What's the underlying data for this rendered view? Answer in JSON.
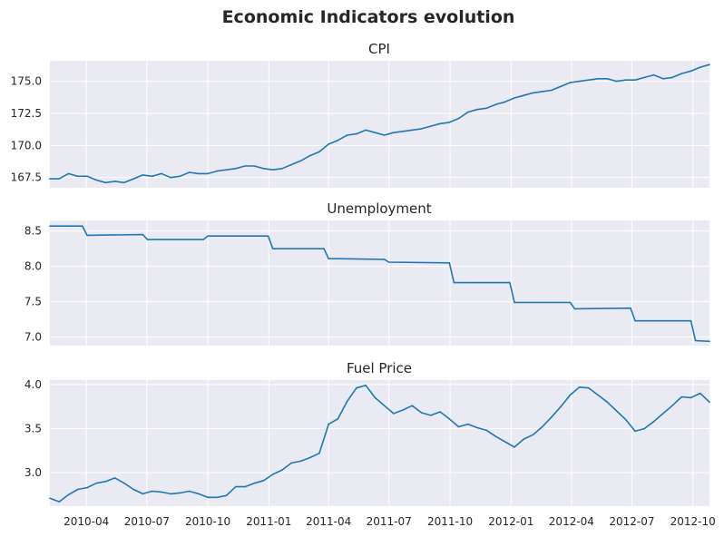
{
  "figure": {
    "title": "Economic Indicators evolution"
  },
  "chart_data": [
    {
      "type": "line",
      "title": "CPI",
      "xlabel": "",
      "ylabel": "",
      "x_range": [
        "2010-02-05",
        "2012-10-26"
      ],
      "ylim": [
        166.7,
        176.6
      ],
      "yticks": [
        "167.5",
        "170.0",
        "172.5",
        "175.0"
      ],
      "ytick_values": [
        167.5,
        170.0,
        172.5,
        175.0
      ],
      "grid": true,
      "color": "#1f77b4",
      "points": [
        [
          "2010-02-05",
          167.4
        ],
        [
          "2010-02-19",
          167.4
        ],
        [
          "2010-03-05",
          167.8
        ],
        [
          "2010-03-19",
          167.6
        ],
        [
          "2010-04-02",
          167.6
        ],
        [
          "2010-04-16",
          167.3
        ],
        [
          "2010-04-30",
          167.1
        ],
        [
          "2010-05-14",
          167.2
        ],
        [
          "2010-05-28",
          167.1
        ],
        [
          "2010-06-11",
          167.4
        ],
        [
          "2010-06-25",
          167.7
        ],
        [
          "2010-07-09",
          167.6
        ],
        [
          "2010-07-23",
          167.8
        ],
        [
          "2010-08-06",
          167.5
        ],
        [
          "2010-08-20",
          167.6
        ],
        [
          "2010-09-03",
          167.9
        ],
        [
          "2010-09-17",
          167.8
        ],
        [
          "2010-10-01",
          167.8
        ],
        [
          "2010-10-15",
          168.0
        ],
        [
          "2010-10-29",
          168.1
        ],
        [
          "2010-11-12",
          168.2
        ],
        [
          "2010-11-26",
          168.4
        ],
        [
          "2010-12-10",
          168.4
        ],
        [
          "2010-12-24",
          168.2
        ],
        [
          "2011-01-07",
          168.1
        ],
        [
          "2011-01-21",
          168.2
        ],
        [
          "2011-02-04",
          168.5
        ],
        [
          "2011-02-18",
          168.8
        ],
        [
          "2011-03-04",
          169.2
        ],
        [
          "2011-03-18",
          169.5
        ],
        [
          "2011-04-01",
          170.1
        ],
        [
          "2011-04-15",
          170.4
        ],
        [
          "2011-04-29",
          170.8
        ],
        [
          "2011-05-13",
          170.9
        ],
        [
          "2011-05-27",
          171.2
        ],
        [
          "2011-06-10",
          171.0
        ],
        [
          "2011-06-24",
          170.8
        ],
        [
          "2011-07-08",
          171.0
        ],
        [
          "2011-07-22",
          171.1
        ],
        [
          "2011-08-05",
          171.2
        ],
        [
          "2011-08-19",
          171.3
        ],
        [
          "2011-09-02",
          171.5
        ],
        [
          "2011-09-16",
          171.7
        ],
        [
          "2011-09-30",
          171.8
        ],
        [
          "2011-10-14",
          172.1
        ],
        [
          "2011-10-28",
          172.6
        ],
        [
          "2011-11-11",
          172.8
        ],
        [
          "2011-11-25",
          172.9
        ],
        [
          "2011-12-09",
          173.2
        ],
        [
          "2011-12-23",
          173.4
        ],
        [
          "2012-01-06",
          173.7
        ],
        [
          "2012-01-20",
          173.9
        ],
        [
          "2012-02-03",
          174.1
        ],
        [
          "2012-02-17",
          174.2
        ],
        [
          "2012-03-02",
          174.3
        ],
        [
          "2012-03-16",
          174.6
        ],
        [
          "2012-03-30",
          174.9
        ],
        [
          "2012-04-13",
          175.0
        ],
        [
          "2012-04-27",
          175.1
        ],
        [
          "2012-05-11",
          175.2
        ],
        [
          "2012-05-25",
          175.2
        ],
        [
          "2012-06-08",
          175.0
        ],
        [
          "2012-06-22",
          175.1
        ],
        [
          "2012-07-06",
          175.1
        ],
        [
          "2012-07-20",
          175.3
        ],
        [
          "2012-08-03",
          175.5
        ],
        [
          "2012-08-17",
          175.2
        ],
        [
          "2012-08-31",
          175.3
        ],
        [
          "2012-09-14",
          175.6
        ],
        [
          "2012-09-28",
          175.8
        ],
        [
          "2012-10-12",
          176.1
        ],
        [
          "2012-10-26",
          176.3
        ]
      ]
    },
    {
      "type": "line",
      "title": "Unemployment",
      "xlabel": "",
      "ylabel": "",
      "x_range": [
        "2010-02-05",
        "2012-10-26"
      ],
      "ylim": [
        6.88,
        8.65
      ],
      "yticks": [
        "7.0",
        "7.5",
        "8.0",
        "8.5"
      ],
      "ytick_values": [
        7.0,
        7.5,
        8.0,
        8.5
      ],
      "grid": true,
      "color": "#1f77b4",
      "points": [
        [
          "2010-02-05",
          8.57
        ],
        [
          "2010-03-05",
          8.57
        ],
        [
          "2010-03-26",
          8.57
        ],
        [
          "2010-04-02",
          8.44
        ],
        [
          "2010-06-25",
          8.45
        ],
        [
          "2010-07-02",
          8.38
        ],
        [
          "2010-09-24",
          8.38
        ],
        [
          "2010-10-01",
          8.43
        ],
        [
          "2010-12-31",
          8.43
        ],
        [
          "2011-01-07",
          8.25
        ],
        [
          "2011-03-25",
          8.25
        ],
        [
          "2011-04-01",
          8.11
        ],
        [
          "2011-06-24",
          8.1
        ],
        [
          "2011-07-01",
          8.06
        ],
        [
          "2011-09-30",
          8.05
        ],
        [
          "2011-10-07",
          7.77
        ],
        [
          "2011-12-30",
          7.77
        ],
        [
          "2012-01-06",
          7.49
        ],
        [
          "2012-03-30",
          7.49
        ],
        [
          "2012-04-06",
          7.4
        ],
        [
          "2012-06-29",
          7.41
        ],
        [
          "2012-07-06",
          7.23
        ],
        [
          "2012-09-28",
          7.23
        ],
        [
          "2012-10-05",
          6.95
        ],
        [
          "2012-10-26",
          6.94
        ]
      ]
    },
    {
      "type": "line",
      "title": "Fuel Price",
      "xlabel": "",
      "ylabel": "",
      "x_range": [
        "2010-02-05",
        "2012-10-26"
      ],
      "ylim": [
        2.62,
        4.05
      ],
      "yticks": [
        "3.0",
        "3.5",
        "4.0"
      ],
      "ytick_values": [
        3.0,
        3.5,
        4.0
      ],
      "grid": true,
      "color": "#1f77b4",
      "points": [
        [
          "2010-02-05",
          2.71
        ],
        [
          "2010-02-19",
          2.67
        ],
        [
          "2010-03-05",
          2.75
        ],
        [
          "2010-03-19",
          2.81
        ],
        [
          "2010-04-02",
          2.83
        ],
        [
          "2010-04-16",
          2.88
        ],
        [
          "2010-04-30",
          2.9
        ],
        [
          "2010-05-14",
          2.94
        ],
        [
          "2010-05-28",
          2.88
        ],
        [
          "2010-06-11",
          2.81
        ],
        [
          "2010-06-25",
          2.76
        ],
        [
          "2010-07-09",
          2.79
        ],
        [
          "2010-07-23",
          2.78
        ],
        [
          "2010-08-06",
          2.76
        ],
        [
          "2010-08-20",
          2.77
        ],
        [
          "2010-09-03",
          2.79
        ],
        [
          "2010-09-17",
          2.76
        ],
        [
          "2010-10-01",
          2.72
        ],
        [
          "2010-10-15",
          2.72
        ],
        [
          "2010-10-29",
          2.74
        ],
        [
          "2010-11-12",
          2.84
        ],
        [
          "2010-11-26",
          2.84
        ],
        [
          "2010-12-10",
          2.88
        ],
        [
          "2010-12-24",
          2.91
        ],
        [
          "2011-01-07",
          2.98
        ],
        [
          "2011-01-21",
          3.03
        ],
        [
          "2011-02-04",
          3.11
        ],
        [
          "2011-02-18",
          3.13
        ],
        [
          "2011-03-04",
          3.17
        ],
        [
          "2011-03-18",
          3.22
        ],
        [
          "2011-04-01",
          3.55
        ],
        [
          "2011-04-15",
          3.61
        ],
        [
          "2011-04-29",
          3.81
        ],
        [
          "2011-05-13",
          3.96
        ],
        [
          "2011-05-27",
          3.99
        ],
        [
          "2011-06-10",
          3.85
        ],
        [
          "2011-06-24",
          3.76
        ],
        [
          "2011-07-08",
          3.67
        ],
        [
          "2011-07-22",
          3.71
        ],
        [
          "2011-08-05",
          3.76
        ],
        [
          "2011-08-19",
          3.68
        ],
        [
          "2011-09-02",
          3.65
        ],
        [
          "2011-09-16",
          3.69
        ],
        [
          "2011-09-30",
          3.61
        ],
        [
          "2011-10-14",
          3.52
        ],
        [
          "2011-10-28",
          3.55
        ],
        [
          "2011-11-11",
          3.51
        ],
        [
          "2011-11-25",
          3.48
        ],
        [
          "2011-12-09",
          3.41
        ],
        [
          "2011-12-23",
          3.35
        ],
        [
          "2012-01-06",
          3.29
        ],
        [
          "2012-01-20",
          3.38
        ],
        [
          "2012-02-03",
          3.43
        ],
        [
          "2012-02-17",
          3.52
        ],
        [
          "2012-03-02",
          3.63
        ],
        [
          "2012-03-16",
          3.75
        ],
        [
          "2012-03-30",
          3.88
        ],
        [
          "2012-04-13",
          3.97
        ],
        [
          "2012-04-27",
          3.96
        ],
        [
          "2012-05-11",
          3.88
        ],
        [
          "2012-05-25",
          3.8
        ],
        [
          "2012-06-08",
          3.7
        ],
        [
          "2012-06-22",
          3.6
        ],
        [
          "2012-07-06",
          3.47
        ],
        [
          "2012-07-20",
          3.5
        ],
        [
          "2012-08-03",
          3.58
        ],
        [
          "2012-08-17",
          3.67
        ],
        [
          "2012-08-31",
          3.76
        ],
        [
          "2012-09-14",
          3.86
        ],
        [
          "2012-09-28",
          3.85
        ],
        [
          "2012-10-12",
          3.9
        ],
        [
          "2012-10-26",
          3.8
        ]
      ]
    }
  ],
  "xticks": [
    "2010-04",
    "2010-07",
    "2010-10",
    "2011-01",
    "2011-04",
    "2011-07",
    "2011-10",
    "2012-01",
    "2012-04",
    "2012-07",
    "2012-10"
  ],
  "xtick_dates": [
    "2010-04-01",
    "2010-07-01",
    "2010-10-01",
    "2011-01-01",
    "2011-04-01",
    "2011-07-01",
    "2011-10-01",
    "2012-01-01",
    "2012-04-01",
    "2012-07-01",
    "2012-10-01"
  ]
}
